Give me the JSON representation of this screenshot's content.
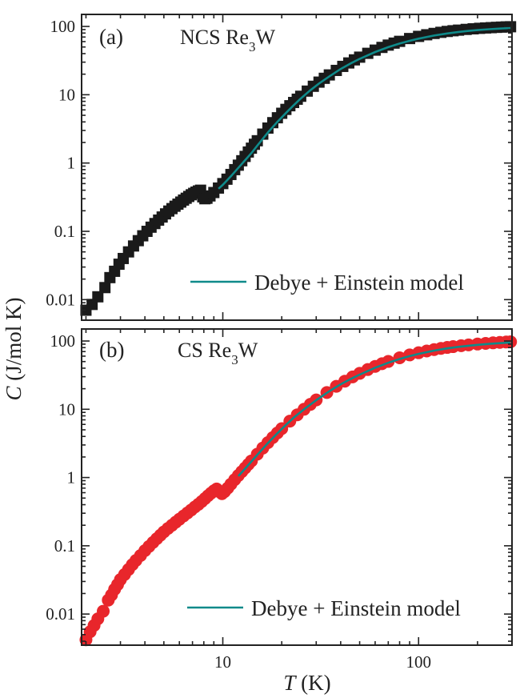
{
  "chart_data": [
    {
      "type": "scatter",
      "panel": "(a)",
      "title_main": "NCS Re",
      "title_sub": "3",
      "title_tail": "W",
      "xscale": "log",
      "yscale": "log",
      "xlim": [
        1.9,
        300
      ],
      "ylim": [
        0.005,
        150
      ],
      "ylabel_italic": "C",
      "ylabel_rest": " (J/mol K)",
      "y_ticks": [
        {
          "v": 0.01,
          "label": "0.01"
        },
        {
          "v": 0.1,
          "label": "0.1"
        },
        {
          "v": 1,
          "label": "1"
        },
        {
          "v": 10,
          "label": "10"
        },
        {
          "v": 100,
          "label": "100"
        }
      ],
      "marker": "square",
      "marker_color": "#1a1a1a",
      "fit_color": "#0f8a8a",
      "legend": "Debye + Einstein model",
      "legend_position": "bottom-right",
      "grid": false,
      "points": [
        [
          2.0,
          0.007
        ],
        [
          2.15,
          0.0085
        ],
        [
          2.3,
          0.011
        ],
        [
          2.5,
          0.015
        ],
        [
          2.65,
          0.021
        ],
        [
          2.8,
          0.026
        ],
        [
          2.95,
          0.033
        ],
        [
          3.1,
          0.04
        ],
        [
          3.3,
          0.05
        ],
        [
          3.5,
          0.061
        ],
        [
          3.7,
          0.073
        ],
        [
          3.9,
          0.086
        ],
        [
          4.1,
          0.1
        ],
        [
          4.3,
          0.115
        ],
        [
          4.5,
          0.13
        ],
        [
          4.7,
          0.146
        ],
        [
          4.9,
          0.162
        ],
        [
          5.1,
          0.18
        ],
        [
          5.3,
          0.198
        ],
        [
          5.5,
          0.215
        ],
        [
          5.7,
          0.233
        ],
        [
          5.9,
          0.25
        ],
        [
          6.1,
          0.268
        ],
        [
          6.3,
          0.287
        ],
        [
          6.5,
          0.305
        ],
        [
          6.7,
          0.324
        ],
        [
          6.9,
          0.343
        ],
        [
          7.1,
          0.36
        ],
        [
          7.3,
          0.375
        ],
        [
          7.5,
          0.39
        ],
        [
          7.7,
          0.4
        ],
        [
          7.9,
          0.32
        ],
        [
          8.1,
          0.3
        ],
        [
          8.3,
          0.305
        ],
        [
          8.6,
          0.33
        ],
        [
          9.0,
          0.37
        ],
        [
          9.5,
          0.43
        ],
        [
          10,
          0.5
        ],
        [
          10.5,
          0.58
        ],
        [
          11,
          0.68
        ],
        [
          11.5,
          0.8
        ],
        [
          12,
          0.93
        ],
        [
          12.5,
          1.08
        ],
        [
          13,
          1.25
        ],
        [
          13.5,
          1.45
        ],
        [
          14,
          1.65
        ],
        [
          14.5,
          1.88
        ],
        [
          15,
          2.12
        ],
        [
          16,
          2.65
        ],
        [
          17,
          3.25
        ],
        [
          18,
          3.9
        ],
        [
          19,
          4.6
        ],
        [
          20,
          5.35
        ],
        [
          21,
          6.1
        ],
        [
          22,
          6.9
        ],
        [
          23,
          7.7
        ],
        [
          24,
          8.6
        ],
        [
          25,
          9.5
        ],
        [
          27,
          11.3
        ],
        [
          29,
          13.3
        ],
        [
          31,
          15.3
        ],
        [
          33,
          17.4
        ],
        [
          35,
          19.5
        ],
        [
          38,
          22.7
        ],
        [
          41,
          26
        ],
        [
          44,
          29.2
        ],
        [
          47,
          32.4
        ],
        [
          50,
          35.5
        ],
        [
          55,
          40.4
        ],
        [
          60,
          45
        ],
        [
          65,
          49.3
        ],
        [
          70,
          53.3
        ],
        [
          75,
          57
        ],
        [
          80,
          60.5
        ],
        [
          90,
          66.5
        ],
        [
          100,
          71.5
        ],
        [
          110,
          75.5
        ],
        [
          120,
          79
        ],
        [
          130,
          82
        ],
        [
          140,
          84.5
        ],
        [
          150,
          86.5
        ],
        [
          160,
          88.3
        ],
        [
          175,
          90.5
        ],
        [
          190,
          92.3
        ],
        [
          205,
          93.8
        ],
        [
          220,
          95
        ],
        [
          235,
          96
        ],
        [
          250,
          97
        ],
        [
          265,
          97.8
        ],
        [
          280,
          98.5
        ],
        [
          295,
          99
        ]
      ],
      "fit": [
        [
          9.5,
          0.42
        ],
        [
          10,
          0.48
        ],
        [
          11,
          0.64
        ],
        [
          12,
          0.85
        ],
        [
          13,
          1.1
        ],
        [
          14,
          1.4
        ],
        [
          15,
          1.8
        ],
        [
          17,
          2.8
        ],
        [
          19,
          4.0
        ],
        [
          21,
          5.4
        ],
        [
          23,
          7.0
        ],
        [
          25,
          8.8
        ],
        [
          28,
          11.6
        ],
        [
          31,
          14.6
        ],
        [
          35,
          18.6
        ],
        [
          40,
          23.8
        ],
        [
          45,
          28.8
        ],
        [
          50,
          33.5
        ],
        [
          60,
          42.2
        ],
        [
          70,
          49.8
        ],
        [
          80,
          56.2
        ],
        [
          90,
          61.6
        ],
        [
          100,
          66.2
        ],
        [
          120,
          73.6
        ],
        [
          140,
          79.0
        ],
        [
          160,
          83.0
        ],
        [
          180,
          86.0
        ],
        [
          200,
          88.4
        ],
        [
          230,
          91.0
        ],
        [
          260,
          93.0
        ],
        [
          295,
          94.8
        ]
      ]
    },
    {
      "type": "scatter",
      "panel": "(b)",
      "title_main": "CS Re",
      "title_sub": "3",
      "title_tail": "W",
      "xscale": "log",
      "yscale": "log",
      "xlim": [
        1.9,
        300
      ],
      "ylim": [
        0.0035,
        150
      ],
      "xlabel_italic": "T",
      "xlabel_rest": " (K)",
      "x_ticks": [
        {
          "v": 10,
          "label": "10"
        },
        {
          "v": 100,
          "label": "100"
        }
      ],
      "y_ticks": [
        {
          "v": 0.01,
          "label": "0.01"
        },
        {
          "v": 0.1,
          "label": "0.1"
        },
        {
          "v": 1,
          "label": "1"
        },
        {
          "v": 10,
          "label": "10"
        },
        {
          "v": 100,
          "label": "100"
        }
      ],
      "marker": "circle",
      "marker_color": "#e8262b",
      "fit_color": "#0f8a8a",
      "legend": "Debye + Einstein model",
      "legend_position": "bottom-right",
      "grid": false,
      "points": [
        [
          2.0,
          0.0042
        ],
        [
          2.1,
          0.0055
        ],
        [
          2.2,
          0.0068
        ],
        [
          2.3,
          0.0085
        ],
        [
          2.45,
          0.011
        ],
        [
          2.6,
          0.016
        ],
        [
          2.7,
          0.019
        ],
        [
          2.8,
          0.023
        ],
        [
          2.9,
          0.027
        ],
        [
          3.0,
          0.032
        ],
        [
          3.15,
          0.038
        ],
        [
          3.3,
          0.045
        ],
        [
          3.45,
          0.053
        ],
        [
          3.6,
          0.061
        ],
        [
          3.8,
          0.072
        ],
        [
          4.0,
          0.085
        ],
        [
          4.2,
          0.098
        ],
        [
          4.4,
          0.112
        ],
        [
          4.6,
          0.127
        ],
        [
          4.8,
          0.143
        ],
        [
          5.0,
          0.16
        ],
        [
          5.25,
          0.18
        ],
        [
          5.5,
          0.2
        ],
        [
          5.75,
          0.222
        ],
        [
          6.0,
          0.245
        ],
        [
          6.3,
          0.273
        ],
        [
          6.6,
          0.303
        ],
        [
          6.9,
          0.335
        ],
        [
          7.2,
          0.37
        ],
        [
          7.5,
          0.405
        ],
        [
          7.8,
          0.445
        ],
        [
          8.1,
          0.49
        ],
        [
          8.4,
          0.54
        ],
        [
          8.7,
          0.59
        ],
        [
          9.0,
          0.64
        ],
        [
          9.3,
          0.68
        ],
        [
          9.6,
          0.62
        ],
        [
          9.9,
          0.58
        ],
        [
          10.2,
          0.62
        ],
        [
          10.6,
          0.7
        ],
        [
          11,
          0.8
        ],
        [
          11.5,
          0.93
        ],
        [
          12,
          1.07
        ],
        [
          12.5,
          1.22
        ],
        [
          13,
          1.38
        ],
        [
          13.5,
          1.56
        ],
        [
          14,
          1.75
        ],
        [
          15,
          2.2
        ],
        [
          16,
          2.7
        ],
        [
          17,
          3.25
        ],
        [
          18,
          3.85
        ],
        [
          19,
          4.5
        ],
        [
          20,
          5.2
        ],
        [
          22,
          6.7
        ],
        [
          24,
          8.3
        ],
        [
          26,
          10
        ],
        [
          28,
          11.8
        ],
        [
          30,
          13.7
        ],
        [
          34,
          17.6
        ],
        [
          38,
          21.7
        ],
        [
          42,
          25.8
        ],
        [
          46,
          29.8
        ],
        [
          50,
          33.6
        ],
        [
          55,
          38.2
        ],
        [
          60,
          42.5
        ],
        [
          65,
          46.5
        ],
        [
          70,
          50.2
        ],
        [
          80,
          56.8
        ],
        [
          90,
          62.5
        ],
        [
          100,
          67.3
        ],
        [
          110,
          71.4
        ],
        [
          120,
          74.9
        ],
        [
          130,
          77.9
        ],
        [
          140,
          80.5
        ],
        [
          150,
          82.7
        ],
        [
          165,
          85.5
        ],
        [
          180,
          87.8
        ],
        [
          200,
          90.3
        ],
        [
          220,
          92.3
        ],
        [
          240,
          94
        ],
        [
          260,
          95.4
        ],
        [
          280,
          96.6
        ],
        [
          295,
          97.4
        ]
      ],
      "fit": [
        [
          12,
          1.05
        ],
        [
          13,
          1.35
        ],
        [
          14,
          1.72
        ],
        [
          15,
          2.15
        ],
        [
          17,
          3.2
        ],
        [
          19,
          4.45
        ],
        [
          21,
          5.9
        ],
        [
          23,
          7.5
        ],
        [
          26,
          10
        ],
        [
          30,
          13.6
        ],
        [
          35,
          18.4
        ],
        [
          40,
          23.2
        ],
        [
          45,
          27.8
        ],
        [
          50,
          32.2
        ],
        [
          60,
          40.6
        ],
        [
          70,
          48
        ],
        [
          80,
          54.5
        ],
        [
          90,
          60
        ],
        [
          100,
          64.8
        ],
        [
          120,
          72.4
        ],
        [
          140,
          78
        ],
        [
          160,
          82.2
        ],
        [
          180,
          85.4
        ],
        [
          200,
          88
        ],
        [
          230,
          90.8
        ],
        [
          260,
          92.9
        ],
        [
          295,
          94.8
        ]
      ]
    }
  ]
}
